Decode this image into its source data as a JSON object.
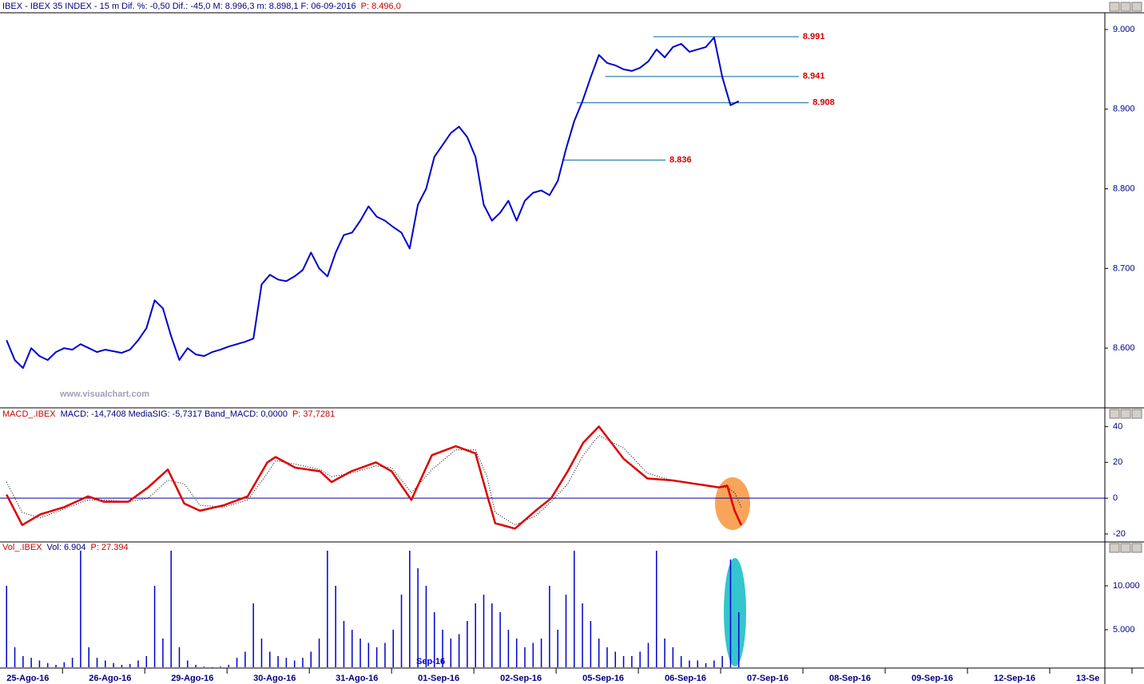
{
  "chart_data": [
    {
      "type": "line",
      "header": [
        {
          "text": "IBEX - IBEX 35 INDEX - 15 m  Dif. %: -0,50  Dif.: -45,0  M: 8.996,3  m: 8.898,1  F: 06-09-2016",
          "color": "#000080"
        },
        {
          "text": "P: 8.496,0",
          "color": "#cc0000"
        }
      ],
      "watermark": "www.visualchart.com",
      "xlim": [
        -0.08,
        13.35
      ],
      "ylim": [
        8526,
        9019
      ],
      "yticks": [
        {
          "value": 9000,
          "label": "9.000"
        },
        {
          "value": 8900,
          "label": "8.900"
        },
        {
          "value": 8800,
          "label": "8.800"
        },
        {
          "value": 8700,
          "label": "8.700"
        },
        {
          "value": 8600,
          "label": "8.600"
        }
      ],
      "levels": [
        {
          "value": 8991,
          "label": "8.991",
          "x": [
            7.86,
            9.63
          ],
          "color": "#006699",
          "label_color": "#cc0000"
        },
        {
          "value": 8941,
          "label": "8.941",
          "x": [
            7.28,
            9.63
          ],
          "color": "#006699",
          "label_color": "#cc0000"
        },
        {
          "value": 8908,
          "label": "8.908",
          "x": [
            6.93,
            9.75
          ],
          "color": "#006699",
          "label_color": "#cc0000"
        },
        {
          "value": 8836,
          "label": "8.836",
          "x": [
            6.77,
            8.01
          ],
          "color": "#006699",
          "label_color": "#cc0000"
        }
      ],
      "series": [
        {
          "color": "#0000cc",
          "style": "solid",
          "x": [
            0.0,
            0.1,
            0.2,
            0.3,
            0.4,
            0.5,
            0.6,
            0.7,
            0.8,
            0.9,
            1.0,
            1.1,
            1.2,
            1.3,
            1.4,
            1.5,
            1.6,
            1.7,
            1.8,
            1.9,
            2.0,
            2.1,
            2.2,
            2.3,
            2.4,
            2.5,
            2.6,
            2.7,
            2.8,
            2.9,
            3.0,
            3.1,
            3.2,
            3.3,
            3.4,
            3.5,
            3.6,
            3.7,
            3.8,
            3.9,
            4.0,
            4.1,
            4.2,
            4.3,
            4.4,
            4.5,
            4.6,
            4.7,
            4.8,
            4.9,
            5.0,
            5.1,
            5.2,
            5.3,
            5.4,
            5.5,
            5.6,
            5.7,
            5.8,
            5.9,
            6.0,
            6.1,
            6.2,
            6.3,
            6.4,
            6.5,
            6.6,
            6.7,
            6.8,
            6.9,
            7.0,
            7.1,
            7.2,
            7.3,
            7.4,
            7.5,
            7.6,
            7.7,
            7.8,
            7.9,
            8.0,
            8.1,
            8.2,
            8.3,
            8.4,
            8.5,
            8.6,
            8.7,
            8.8,
            8.9
          ],
          "values": [
            8610,
            8585,
            8575,
            8600,
            8590,
            8585,
            8595,
            8600,
            8598,
            8605,
            8600,
            8595,
            8598,
            8596,
            8594,
            8598,
            8610,
            8625,
            8660,
            8650,
            8615,
            8585,
            8600,
            8592,
            8590,
            8595,
            8598,
            8602,
            8605,
            8608,
            8612,
            8680,
            8692,
            8686,
            8684,
            8690,
            8698,
            8720,
            8700,
            8690,
            8720,
            8742,
            8745,
            8760,
            8778,
            8765,
            8760,
            8752,
            8745,
            8725,
            8780,
            8800,
            8840,
            8855,
            8870,
            8878,
            8865,
            8840,
            8780,
            8760,
            8770,
            8785,
            8760,
            8785,
            8795,
            8798,
            8792,
            8810,
            8850,
            8885,
            8910,
            8940,
            8968,
            8958,
            8955,
            8950,
            8948,
            8952,
            8960,
            8975,
            8965,
            8978,
            8982,
            8972,
            8975,
            8978,
            8990,
            8940,
            8905,
            8910
          ]
        }
      ]
    },
    {
      "type": "line",
      "header": [
        {
          "text": "MACD_.IBEX",
          "color": "#cc0000"
        },
        {
          "text": "MACD: -14,7408  MediaSIG: -5,7317  Band_MACD: 0,0000",
          "color": "#000080"
        },
        {
          "text": "P: 37,7281",
          "color": "#cc0000"
        }
      ],
      "xlim": [
        -0.08,
        13.35
      ],
      "ylim": [
        -24,
        50
      ],
      "yticks": [
        40,
        20,
        0,
        -20
      ],
      "ref_line": 0,
      "ref_color": "#0000aa",
      "series": [
        {
          "color": "#000000",
          "style": "dotted",
          "x": [
            0.0,
            0.19,
            0.41,
            0.7,
            0.99,
            1.18,
            1.48,
            1.72,
            1.96,
            2.16,
            2.35,
            2.64,
            2.93,
            3.17,
            3.27,
            3.51,
            3.81,
            3.95,
            4.19,
            4.49,
            4.68,
            4.92,
            5.17,
            5.46,
            5.7,
            5.84,
            5.94,
            6.18,
            6.43,
            6.62,
            6.82,
            7.01,
            7.2,
            7.5,
            7.79,
            8.08,
            8.37,
            8.66,
            8.76,
            8.85,
            8.93
          ],
          "values": [
            9,
            -8,
            -11,
            -6,
            -1,
            -1,
            -2,
            0,
            10,
            8,
            -4,
            -5,
            -1,
            14,
            21,
            19,
            16,
            12,
            14,
            18,
            17,
            3,
            16,
            27,
            27,
            12,
            -8,
            -15,
            -10,
            -2,
            8,
            24,
            35,
            28,
            14,
            10,
            8,
            6,
            6,
            3,
            -5
          ]
        },
        {
          "color": "#dd0000",
          "style": "solid",
          "x": [
            0.0,
            0.19,
            0.41,
            0.7,
            0.99,
            1.18,
            1.48,
            1.72,
            1.96,
            2.16,
            2.35,
            2.64,
            2.93,
            3.17,
            3.27,
            3.51,
            3.81,
            3.95,
            4.19,
            4.49,
            4.68,
            4.92,
            5.17,
            5.46,
            5.7,
            5.84,
            5.94,
            6.18,
            6.43,
            6.62,
            6.82,
            7.01,
            7.2,
            7.5,
            7.79,
            8.08,
            8.37,
            8.66,
            8.76,
            8.85,
            8.93
          ],
          "values": [
            2,
            -15,
            -9,
            -5,
            1,
            -2,
            -2,
            6,
            16,
            -3,
            -7,
            -4,
            1,
            20,
            23,
            17,
            15,
            9,
            15,
            20,
            15,
            -1,
            24,
            29,
            25,
            2,
            -14,
            -17,
            -7,
            0,
            15,
            31,
            40,
            22,
            11,
            10,
            8,
            6,
            7,
            -7,
            -15
          ]
        }
      ]
    },
    {
      "type": "bar",
      "header": [
        {
          "text": "Vol_.IBEX",
          "color": "#cc0000"
        },
        {
          "text": "Vol: 6.904",
          "color": "#000080"
        },
        {
          "text": "P: 27.394",
          "color": "#cc0000"
        }
      ],
      "annotation": "Sep-16",
      "xlim": [
        -0.08,
        13.35
      ],
      "ylim": [
        727,
        14909
      ],
      "yticks": [
        {
          "value": 10000,
          "label": "10.000"
        },
        {
          "value": 5000,
          "label": "5.000"
        }
      ],
      "categories": [
        "25-Ago-16",
        "26-Ago-16",
        "29-Ago-16",
        "30-Ago-16",
        "31-Ago-16",
        "01-Sep-16",
        "02-Sep-16",
        "05-Sep-16",
        "06-Sep-16",
        "07-Sep-16",
        "08-Sep-16",
        "09-Sep-16",
        "12-Sep-16",
        "13-Se"
      ],
      "color": "#0000cc",
      "x": [
        0.0,
        0.1,
        0.2,
        0.3,
        0.4,
        0.5,
        0.6,
        0.7,
        0.8,
        0.9,
        1.0,
        1.1,
        1.2,
        1.3,
        1.4,
        1.5,
        1.6,
        1.7,
        1.8,
        1.9,
        2.0,
        2.1,
        2.2,
        2.3,
        2.4,
        2.5,
        2.6,
        2.7,
        2.8,
        2.9,
        3.0,
        3.1,
        3.2,
        3.3,
        3.4,
        3.5,
        3.6,
        3.7,
        3.8,
        3.9,
        4.0,
        4.1,
        4.2,
        4.3,
        4.4,
        4.5,
        4.6,
        4.7,
        4.8,
        4.9,
        5.0,
        5.1,
        5.2,
        5.3,
        5.4,
        5.5,
        5.6,
        5.7,
        5.8,
        5.9,
        6.0,
        6.1,
        6.2,
        6.3,
        6.4,
        6.5,
        6.6,
        6.7,
        6.8,
        6.9,
        7.0,
        7.1,
        7.2,
        7.3,
        7.4,
        7.5,
        7.6,
        7.7,
        7.8,
        7.9,
        8.0,
        8.1,
        8.2,
        8.3,
        8.4,
        8.5,
        8.6,
        8.7,
        8.8,
        8.9
      ],
      "values": [
        10000,
        3000,
        2000,
        1800,
        1500,
        1200,
        1000,
        1300,
        1800,
        14000,
        3000,
        1800,
        1500,
        1200,
        1000,
        1100,
        1500,
        2000,
        10000,
        4000,
        14000,
        3000,
        1500,
        1000,
        800,
        700,
        800,
        1000,
        1800,
        2500,
        8000,
        4000,
        2500,
        2000,
        1800,
        1500,
        1800,
        2500,
        4000,
        14000,
        10000,
        6000,
        5000,
        4000,
        3500,
        3000,
        3500,
        5000,
        9000,
        14000,
        12000,
        10000,
        7000,
        5000,
        4000,
        4500,
        6000,
        8000,
        9000,
        8000,
        7000,
        5000,
        4000,
        3000,
        3500,
        4000,
        10000,
        5000,
        9000,
        14000,
        8000,
        6000,
        4000,
        3000,
        2500,
        2000,
        2000,
        2500,
        3500,
        14000,
        4000,
        3000,
        2000,
        1500,
        1500,
        1200,
        1500,
        2000,
        13000,
        7000
      ]
    }
  ]
}
